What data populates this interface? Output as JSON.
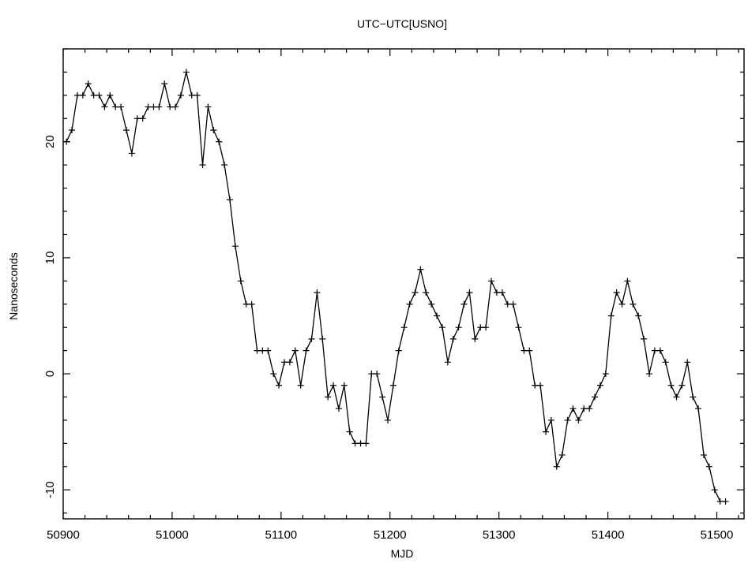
{
  "chart_data": {
    "type": "line",
    "title": "UTC−UTC[USNO]",
    "xlabel": "MJD",
    "ylabel": "Nanoseconds",
    "xlim": [
      50900,
      51525
    ],
    "ylim": [
      -12.5,
      28
    ],
    "x_ticks": [
      50900,
      51000,
      51100,
      51200,
      51300,
      51400,
      51500
    ],
    "y_ticks": [
      -10,
      0,
      10,
      20
    ],
    "grid": false,
    "marker": "plus",
    "series": [
      {
        "x": [
          50903,
          50908,
          50913,
          50918,
          50923,
          50928,
          50933,
          50938,
          50943,
          50948,
          50953,
          50958,
          50963,
          50968,
          50973,
          50978,
          50983,
          50988,
          50993,
          50998,
          51003,
          51008,
          51013,
          51018,
          51023,
          51028,
          51033,
          51038,
          51043,
          51048,
          51053,
          51058,
          51063,
          51068,
          51073,
          51078,
          51083,
          51088,
          51093,
          51098,
          51103,
          51108,
          51113,
          51118,
          51123,
          51128,
          51133,
          51138,
          51143,
          51148,
          51153,
          51158,
          51163,
          51168,
          51173,
          51178,
          51183,
          51188,
          51193,
          51198,
          51203,
          51208,
          51213,
          51218,
          51223,
          51228,
          51233,
          51238,
          51243,
          51248,
          51253,
          51258,
          51263,
          51268,
          51273,
          51278,
          51283,
          51288,
          51293,
          51298,
          51303,
          51308,
          51313,
          51318,
          51323,
          51328,
          51333,
          51338,
          51343,
          51348,
          51353,
          51358,
          51363,
          51368,
          51373,
          51378,
          51383,
          51388,
          51393,
          51398,
          51403,
          51408,
          51413,
          51418,
          51423,
          51428,
          51433,
          51438,
          51443,
          51448,
          51453,
          51458,
          51463,
          51468,
          51473,
          51478,
          51483,
          51488,
          51493,
          51498,
          51503,
          51508
        ],
        "y": [
          20,
          21,
          24,
          24,
          25,
          24,
          24,
          23,
          24,
          23,
          23,
          21,
          19,
          22,
          22,
          23,
          23,
          23,
          25,
          23,
          23,
          24,
          26,
          24,
          24,
          18,
          23,
          21,
          20,
          18,
          15,
          11,
          8,
          6,
          6,
          2,
          2,
          2,
          0,
          -1,
          1,
          1,
          2,
          -1,
          2,
          3,
          7,
          3,
          -2,
          -1,
          -3,
          -1,
          -5,
          -6,
          -6,
          -6,
          0,
          0,
          -2,
          -4,
          -1,
          2,
          4,
          6,
          7,
          9,
          7,
          6,
          5,
          4,
          1,
          3,
          4,
          6,
          7,
          3,
          4,
          4,
          8,
          7,
          7,
          6,
          6,
          4,
          2,
          2,
          -1,
          -1,
          -5,
          -4,
          -8,
          -7,
          -4,
          -3,
          -4,
          -3,
          -3,
          -2,
          -1,
          0,
          5,
          7,
          6,
          8,
          6,
          5,
          3,
          0,
          2,
          2,
          1,
          -1,
          -2,
          -1,
          1,
          -2,
          -3,
          -7,
          -8,
          -10,
          -11,
          -11
        ]
      }
    ]
  }
}
